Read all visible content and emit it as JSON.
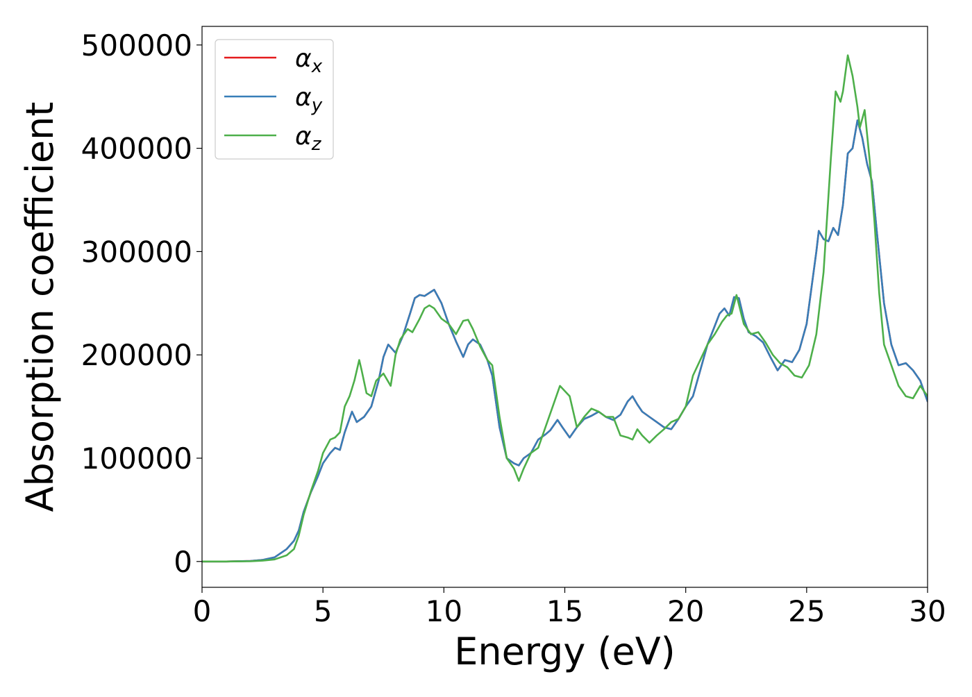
{
  "chart_data": {
    "type": "line",
    "title": "",
    "xlabel": "Energy (eV)",
    "ylabel": "Absorption coefficient",
    "xlim": [
      0,
      30
    ],
    "ylim": [
      -25000,
      518000
    ],
    "xticks": [
      0,
      5,
      10,
      15,
      20,
      25,
      30
    ],
    "yticks": [
      0,
      100000,
      200000,
      300000,
      400000,
      500000
    ],
    "xtick_labels": [
      "0",
      "5",
      "10",
      "15",
      "20",
      "25",
      "30"
    ],
    "ytick_labels": [
      "0",
      "100000",
      "200000",
      "300000",
      "400000",
      "500000"
    ],
    "grid": false,
    "legend_position": "top-left",
    "series": [
      {
        "name": "αx",
        "base": "α",
        "sub": "x",
        "color": "#e41a1c",
        "x": [
          0,
          1,
          2,
          2.5,
          3,
          3.5,
          3.8,
          4,
          4.2,
          4.5,
          4.8,
          5,
          5.3,
          5.5,
          5.7,
          5.9,
          6.2,
          6.4,
          6.7,
          7,
          7.3,
          7.5,
          7.7,
          8,
          8.3,
          8.6,
          8.8,
          9,
          9.2,
          9.4,
          9.6,
          9.9,
          10.2,
          10.5,
          10.8,
          11,
          11.2,
          11.5,
          11.8,
          12,
          12.3,
          12.6,
          12.9,
          13.1,
          13.3,
          13.6,
          13.9,
          14.2,
          14.4,
          14.7,
          14.9,
          15.2,
          15.5,
          15.8,
          16.1,
          16.4,
          16.7,
          17,
          17.3,
          17.6,
          17.8,
          18,
          18.2,
          18.5,
          18.8,
          19.1,
          19.4,
          19.7,
          20,
          20.3,
          20.6,
          20.9,
          21.2,
          21.4,
          21.6,
          21.8,
          22,
          22.2,
          22.4,
          22.6,
          22.9,
          23.2,
          23.5,
          23.8,
          24.1,
          24.4,
          24.7,
          25,
          25.2,
          25.4,
          25.5,
          25.7,
          25.9,
          26.1,
          26.3,
          26.5,
          26.7,
          26.9,
          27.1,
          27.3,
          27.5,
          27.7,
          27.9,
          28.2,
          28.5,
          28.8,
          29.1,
          29.4,
          29.7,
          30
        ],
        "values": [
          0,
          0,
          500,
          1500,
          4000,
          12000,
          20000,
          30000,
          48000,
          67000,
          83000,
          95000,
          105000,
          110000,
          108000,
          125000,
          145000,
          135000,
          140000,
          150000,
          175000,
          198000,
          210000,
          202000,
          218000,
          240000,
          255000,
          258000,
          257000,
          260000,
          263000,
          250000,
          230000,
          213000,
          198000,
          210000,
          215000,
          210000,
          195000,
          180000,
          130000,
          100000,
          95000,
          93000,
          100000,
          105000,
          118000,
          123000,
          127000,
          137000,
          130000,
          120000,
          130000,
          138000,
          141000,
          145000,
          140000,
          137000,
          142000,
          155000,
          160000,
          152000,
          145000,
          140000,
          135000,
          130000,
          128000,
          138000,
          150000,
          160000,
          185000,
          210000,
          228000,
          240000,
          245000,
          238000,
          256000,
          255000,
          235000,
          222000,
          218000,
          212000,
          198000,
          185000,
          195000,
          193000,
          205000,
          230000,
          265000,
          300000,
          320000,
          312000,
          310000,
          323000,
          316000,
          345000,
          395000,
          400000,
          427000,
          410000,
          385000,
          368000,
          320000,
          250000,
          210000,
          190000,
          192000,
          185000,
          175000,
          155000
        ]
      },
      {
        "name": "αy",
        "base": "α",
        "sub": "y",
        "color": "#377eb8",
        "x": [
          0,
          1,
          2,
          2.5,
          3,
          3.5,
          3.8,
          4,
          4.2,
          4.5,
          4.8,
          5,
          5.3,
          5.5,
          5.7,
          5.9,
          6.2,
          6.4,
          6.7,
          7,
          7.3,
          7.5,
          7.7,
          8,
          8.3,
          8.6,
          8.8,
          9,
          9.2,
          9.4,
          9.6,
          9.9,
          10.2,
          10.5,
          10.8,
          11,
          11.2,
          11.5,
          11.8,
          12,
          12.3,
          12.6,
          12.9,
          13.1,
          13.3,
          13.6,
          13.9,
          14.2,
          14.4,
          14.7,
          14.9,
          15.2,
          15.5,
          15.8,
          16.1,
          16.4,
          16.7,
          17,
          17.3,
          17.6,
          17.8,
          18,
          18.2,
          18.5,
          18.8,
          19.1,
          19.4,
          19.7,
          20,
          20.3,
          20.6,
          20.9,
          21.2,
          21.4,
          21.6,
          21.8,
          22,
          22.2,
          22.4,
          22.6,
          22.9,
          23.2,
          23.5,
          23.8,
          24.1,
          24.4,
          24.7,
          25,
          25.2,
          25.4,
          25.5,
          25.7,
          25.9,
          26.1,
          26.3,
          26.5,
          26.7,
          26.9,
          27.1,
          27.3,
          27.5,
          27.7,
          27.9,
          28.2,
          28.5,
          28.8,
          29.1,
          29.4,
          29.7,
          30
        ],
        "values": [
          0,
          0,
          500,
          1500,
          4000,
          12000,
          20000,
          30000,
          48000,
          67000,
          83000,
          95000,
          105000,
          110000,
          108000,
          125000,
          145000,
          135000,
          140000,
          150000,
          175000,
          198000,
          210000,
          202000,
          218000,
          240000,
          255000,
          258000,
          257000,
          260000,
          263000,
          250000,
          230000,
          213000,
          198000,
          210000,
          215000,
          210000,
          195000,
          180000,
          130000,
          100000,
          95000,
          93000,
          100000,
          105000,
          118000,
          123000,
          127000,
          137000,
          130000,
          120000,
          130000,
          138000,
          141000,
          145000,
          140000,
          137000,
          142000,
          155000,
          160000,
          152000,
          145000,
          140000,
          135000,
          130000,
          128000,
          138000,
          150000,
          160000,
          185000,
          210000,
          228000,
          240000,
          245000,
          238000,
          256000,
          255000,
          235000,
          222000,
          218000,
          212000,
          198000,
          185000,
          195000,
          193000,
          205000,
          230000,
          265000,
          300000,
          320000,
          312000,
          310000,
          323000,
          316000,
          345000,
          395000,
          400000,
          427000,
          410000,
          385000,
          368000,
          320000,
          250000,
          210000,
          190000,
          192000,
          185000,
          175000,
          155000
        ]
      },
      {
        "name": "αz",
        "base": "α",
        "sub": "z",
        "color": "#4daf4a",
        "x": [
          0,
          1,
          2,
          2.5,
          3,
          3.5,
          3.8,
          4,
          4.2,
          4.5,
          4.8,
          5,
          5.3,
          5.5,
          5.7,
          5.9,
          6.1,
          6.3,
          6.5,
          6.6,
          6.8,
          7,
          7.2,
          7.5,
          7.8,
          8,
          8.2,
          8.5,
          8.7,
          9,
          9.2,
          9.4,
          9.6,
          9.9,
          10.2,
          10.5,
          10.8,
          11,
          11.2,
          11.5,
          11.8,
          12,
          12.3,
          12.6,
          12.9,
          13.1,
          13.3,
          13.6,
          13.9,
          14.2,
          14.5,
          14.8,
          15,
          15.2,
          15.5,
          15.8,
          16.1,
          16.4,
          16.7,
          17,
          17.3,
          17.6,
          17.8,
          18,
          18.2,
          18.5,
          18.8,
          19.1,
          19.4,
          19.7,
          20,
          20.3,
          20.6,
          20.9,
          21.2,
          21.5,
          21.7,
          21.9,
          22.1,
          22.4,
          22.7,
          23,
          23.3,
          23.6,
          23.9,
          24.2,
          24.5,
          24.8,
          25.1,
          25.4,
          25.7,
          26,
          26.2,
          26.4,
          26.5,
          26.7,
          26.9,
          27.1,
          27.2,
          27.4,
          27.6,
          27.8,
          28,
          28.2,
          28.5,
          28.8,
          29.1,
          29.4,
          29.7,
          30
        ],
        "values": [
          0,
          0,
          300,
          800,
          2000,
          6000,
          12000,
          25000,
          45000,
          68000,
          88000,
          105000,
          118000,
          120000,
          125000,
          150000,
          160000,
          175000,
          195000,
          185000,
          163000,
          160000,
          175000,
          182000,
          170000,
          200000,
          215000,
          225000,
          222000,
          235000,
          245000,
          248000,
          245000,
          235000,
          230000,
          220000,
          233000,
          234000,
          225000,
          208000,
          195000,
          190000,
          140000,
          100000,
          90000,
          78000,
          90000,
          105000,
          110000,
          130000,
          150000,
          170000,
          165000,
          160000,
          130000,
          140000,
          148000,
          145000,
          140000,
          140000,
          122000,
          120000,
          118000,
          128000,
          122000,
          115000,
          122000,
          128000,
          135000,
          138000,
          150000,
          180000,
          195000,
          210000,
          220000,
          232000,
          238000,
          240000,
          258000,
          230000,
          220000,
          222000,
          212000,
          200000,
          192000,
          188000,
          180000,
          178000,
          190000,
          220000,
          280000,
          390000,
          455000,
          445000,
          455000,
          490000,
          470000,
          440000,
          420000,
          437000,
          390000,
          330000,
          260000,
          210000,
          190000,
          170000,
          160000,
          158000,
          170000,
          160000
        ]
      }
    ]
  }
}
